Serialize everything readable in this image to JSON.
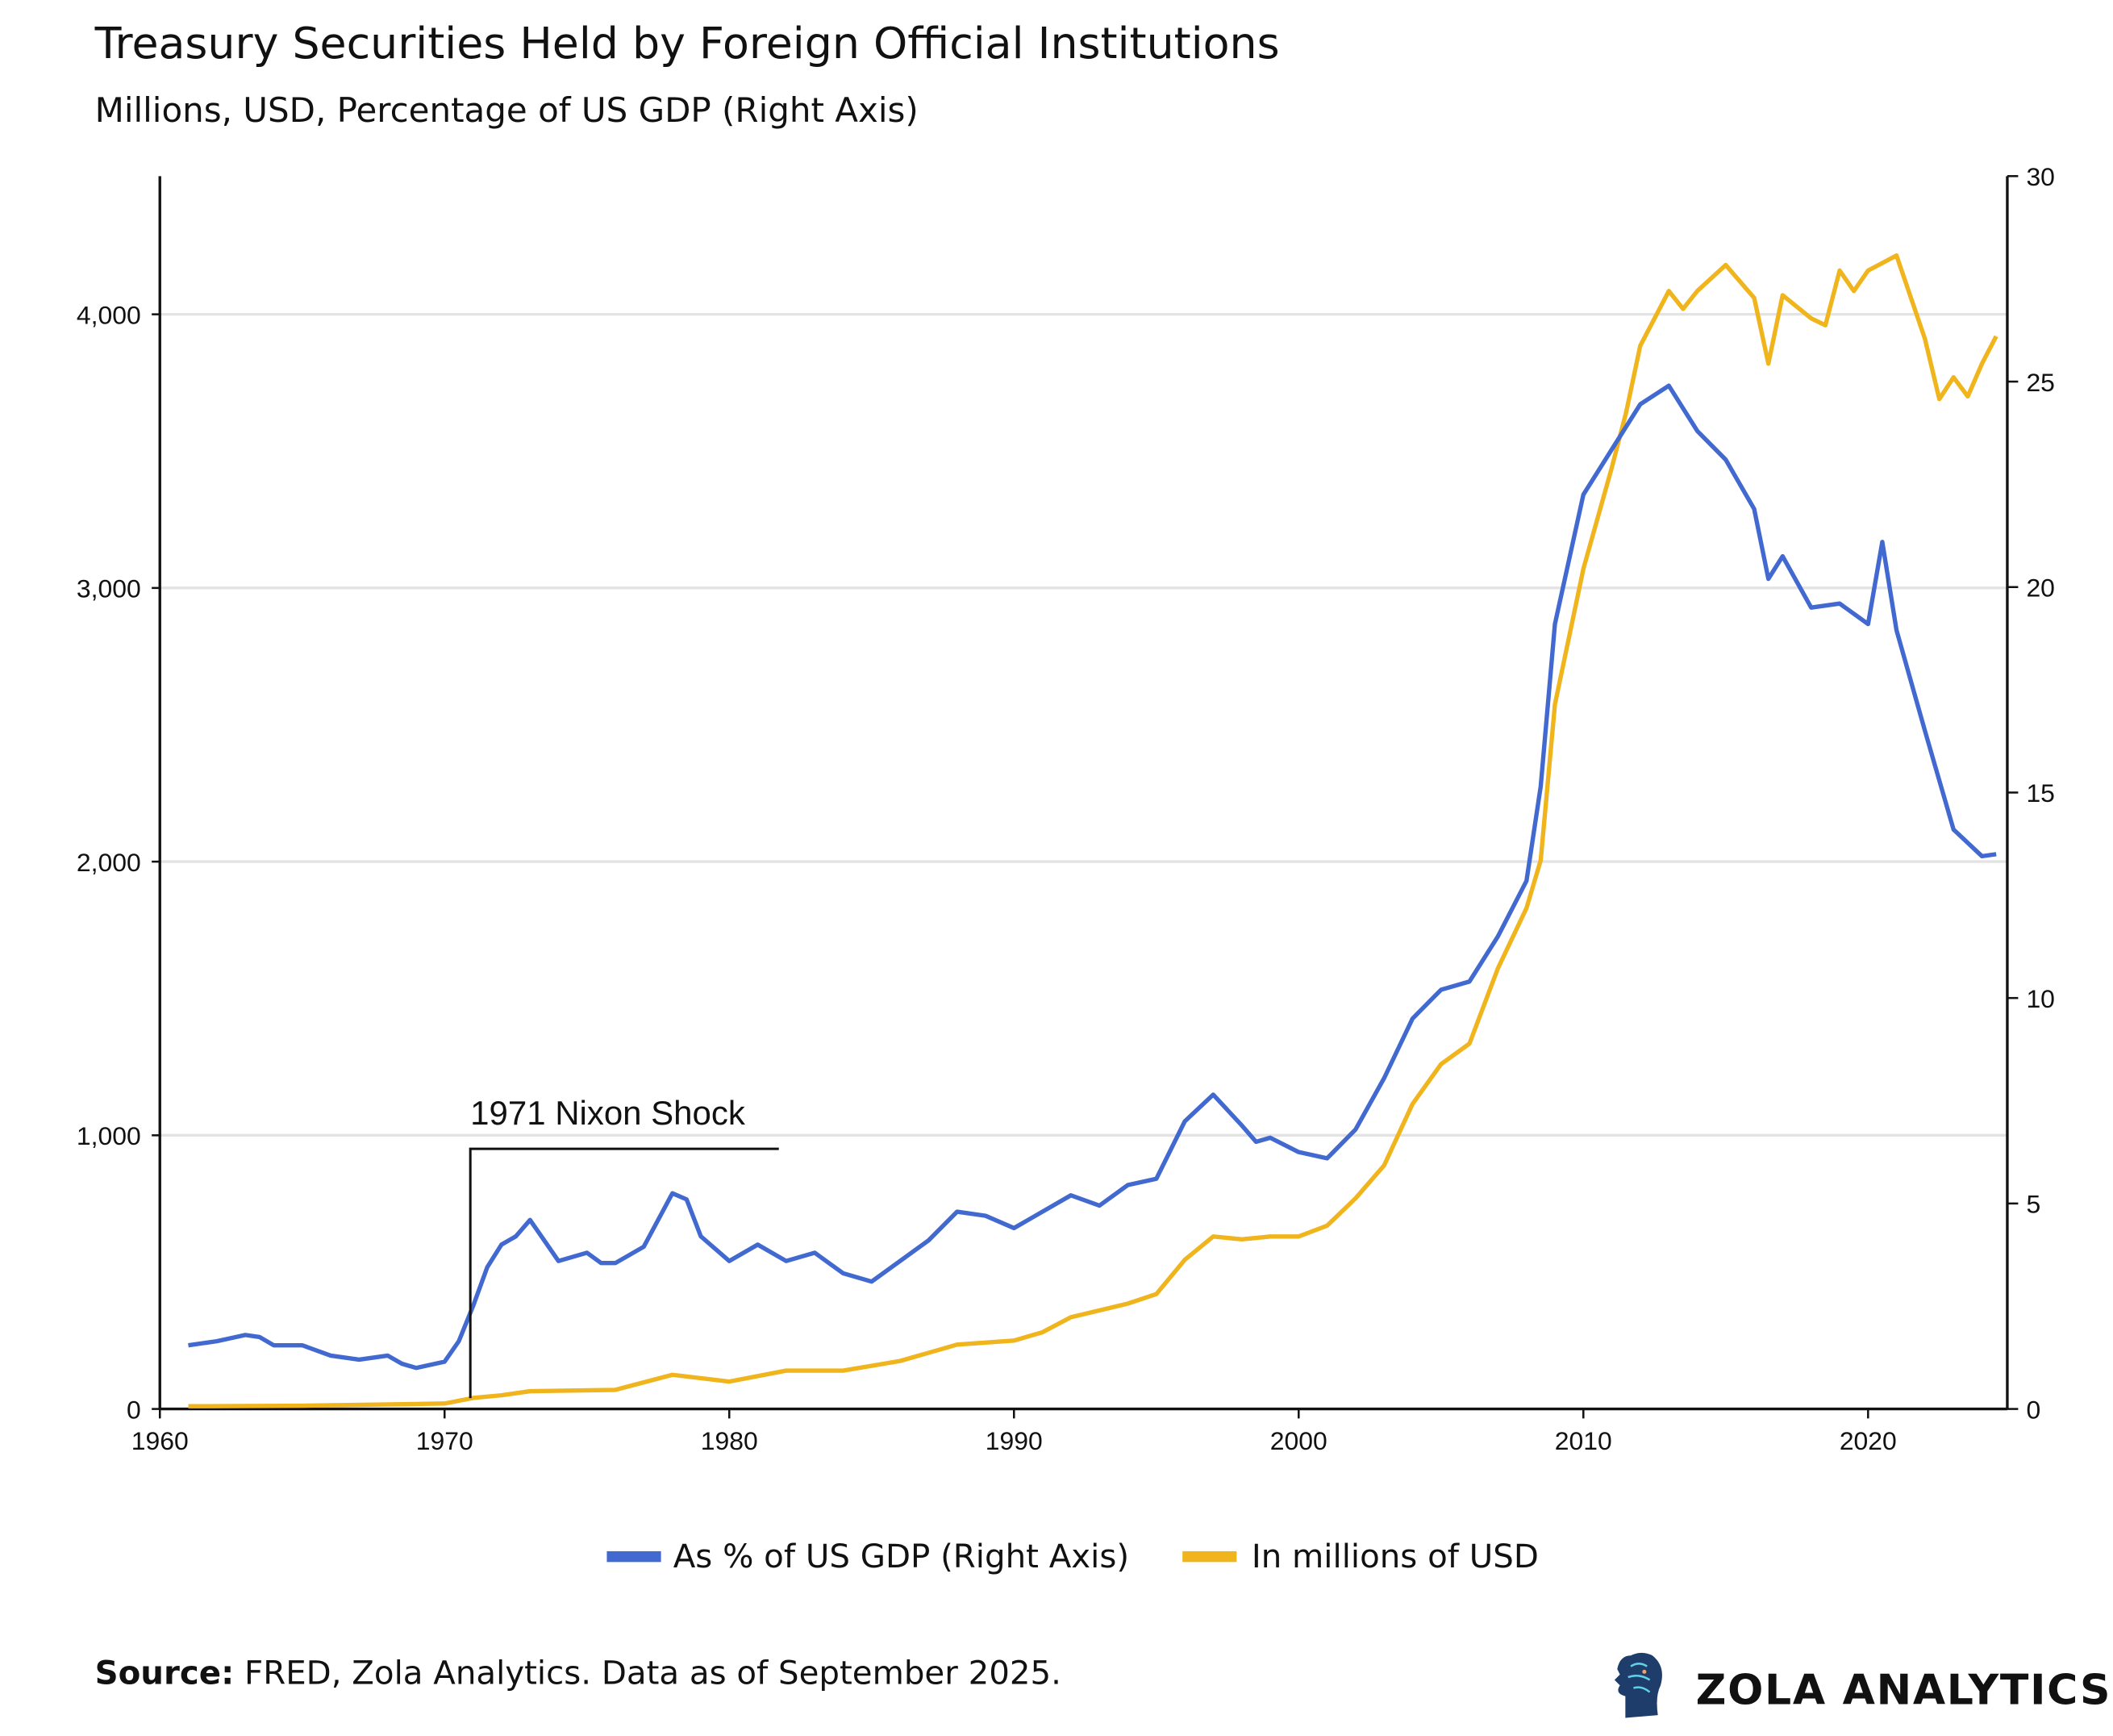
{
  "header": {
    "title": "Treasury Securities Held by Foreign Official Institutions",
    "subtitle": "Millions, USD, Percentage of US GDP (Right Axis)"
  },
  "footer": {
    "source_label": "Source:",
    "source_text": " FRED, Zola Analytics. Data as of September 2025.",
    "logo_text": "ZOLA ANALYTICS"
  },
  "chart_data": {
    "type": "line",
    "title": "Treasury Securities Held by Foreign Official Institutions",
    "subtitle": "Millions, USD, Percentage of US GDP (Right Axis)",
    "xlim": [
      1960,
      2025
    ],
    "x_ticks": [
      "1960",
      "1970",
      "1980",
      "1990",
      "2000",
      "2010",
      "2020"
    ],
    "ylim_left": [
      0,
      4500
    ],
    "y_ticks_left": [
      "0",
      "1,000",
      "2,000",
      "3,000",
      "4,000"
    ],
    "ylim_right": [
      0,
      30
    ],
    "y_ticks_right": [
      "0",
      "5",
      "10",
      "15",
      "20",
      "25",
      "30"
    ],
    "grid": "horizontal",
    "legend_placement": "bottom",
    "annotation": {
      "text": "1971 Nixon Shock",
      "x": 1971
    },
    "series": [
      {
        "name": "As % of US GDP (Right Axis)",
        "axis": "right",
        "color": "#4169d0",
        "x": [
          1961,
          1962,
          1963,
          1963.5,
          1964,
          1965,
          1966,
          1967,
          1968,
          1968.5,
          1969,
          1970,
          1970.5,
          1971,
          1971.5,
          1972,
          1972.5,
          1973,
          1973.5,
          1974,
          1975,
          1975.5,
          1976,
          1977,
          1978,
          1978.5,
          1979,
          1980,
          1981,
          1982,
          1983,
          1984,
          1985,
          1986,
          1987,
          1988,
          1989,
          1990,
          1991,
          1992,
          1993,
          1994,
          1995,
          1996,
          1997,
          1998,
          1998.5,
          1999,
          2000,
          2001,
          2002,
          2003,
          2004,
          2005,
          2006,
          2007,
          2008,
          2008.5,
          2009,
          2010,
          2011,
          2012,
          2013,
          2014,
          2015,
          2016,
          2016.5,
          2017,
          2018,
          2019,
          2020,
          2020.5,
          2021,
          2022,
          2023,
          2024,
          2024.5
        ],
        "values": [
          1.55,
          1.65,
          1.8,
          1.75,
          1.55,
          1.55,
          1.3,
          1.2,
          1.3,
          1.1,
          1.0,
          1.15,
          1.65,
          2.5,
          3.45,
          4.0,
          4.2,
          4.6,
          4.1,
          3.6,
          3.8,
          3.55,
          3.55,
          3.95,
          5.25,
          5.1,
          4.2,
          3.6,
          4.0,
          3.6,
          3.8,
          3.3,
          3.1,
          3.6,
          4.1,
          4.8,
          4.7,
          4.4,
          4.8,
          5.2,
          4.95,
          5.45,
          5.6,
          7.0,
          7.65,
          6.9,
          6.5,
          6.6,
          6.25,
          6.1,
          6.8,
          8.05,
          9.5,
          10.2,
          10.4,
          11.5,
          12.85,
          15.15,
          19.1,
          22.25,
          23.35,
          24.45,
          24.9,
          23.8,
          23.1,
          21.9,
          20.2,
          20.75,
          19.5,
          19.6,
          19.1,
          21.1,
          18.95,
          16.5,
          14.1,
          13.45,
          13.5
        ]
      },
      {
        "name": "In millions of USD",
        "axis": "left",
        "color": "#f0b41c",
        "x": [
          1961,
          1965,
          1970,
          1971,
          1972,
          1973,
          1976,
          1978,
          1980,
          1982,
          1984,
          1986,
          1988,
          1990,
          1991,
          1992,
          1994,
          1995,
          1996,
          1997,
          1998,
          1999,
          2000,
          2001,
          2002,
          2003,
          2004,
          2005,
          2006,
          2007,
          2008,
          2008.5,
          2009,
          2010,
          2011,
          2011.5,
          2012,
          2013,
          2013.5,
          2014,
          2015,
          2016,
          2016.5,
          2017,
          2018,
          2018.5,
          2019,
          2019.5,
          2020,
          2021,
          2022,
          2022.5,
          2023,
          2023.5,
          2024,
          2024.5
        ],
        "values": [
          10,
          12,
          20,
          40,
          50,
          65,
          70,
          125,
          100,
          140,
          140,
          175,
          235,
          250,
          280,
          335,
          385,
          420,
          545,
          630,
          620,
          630,
          630,
          670,
          770,
          890,
          1115,
          1260,
          1335,
          1610,
          1830,
          2005,
          2575,
          3070,
          3440,
          3640,
          3885,
          4085,
          4020,
          4085,
          4180,
          4060,
          3820,
          4070,
          3985,
          3960,
          4160,
          4085,
          4160,
          4215,
          3910,
          3690,
          3770,
          3700,
          3820,
          3920
        ]
      }
    ]
  }
}
